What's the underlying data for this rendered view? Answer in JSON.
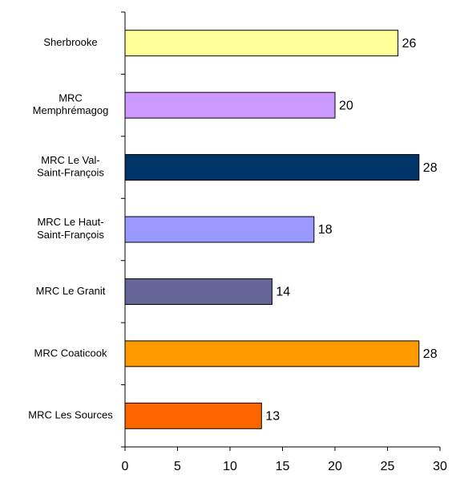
{
  "chart_data": {
    "type": "bar",
    "orientation": "horizontal",
    "categories": [
      "Sherbrooke",
      "MRC\nMemphrémagog",
      "MRC Le Val-\nSaint-François",
      "MRC Le Haut-\nSaint-François",
      "MRC Le Granit",
      "MRC Coaticook",
      "MRC Les Sources"
    ],
    "values": [
      26,
      20,
      28,
      18,
      14,
      28,
      13
    ],
    "colors": [
      "#ffff99",
      "#cc99ff",
      "#003366",
      "#9999ff",
      "#666699",
      "#ff9900",
      "#ff6600"
    ],
    "xlim": [
      0,
      30
    ],
    "xticks": [
      0,
      5,
      10,
      15,
      20,
      25,
      30
    ],
    "grid": false,
    "data_labels": true
  }
}
